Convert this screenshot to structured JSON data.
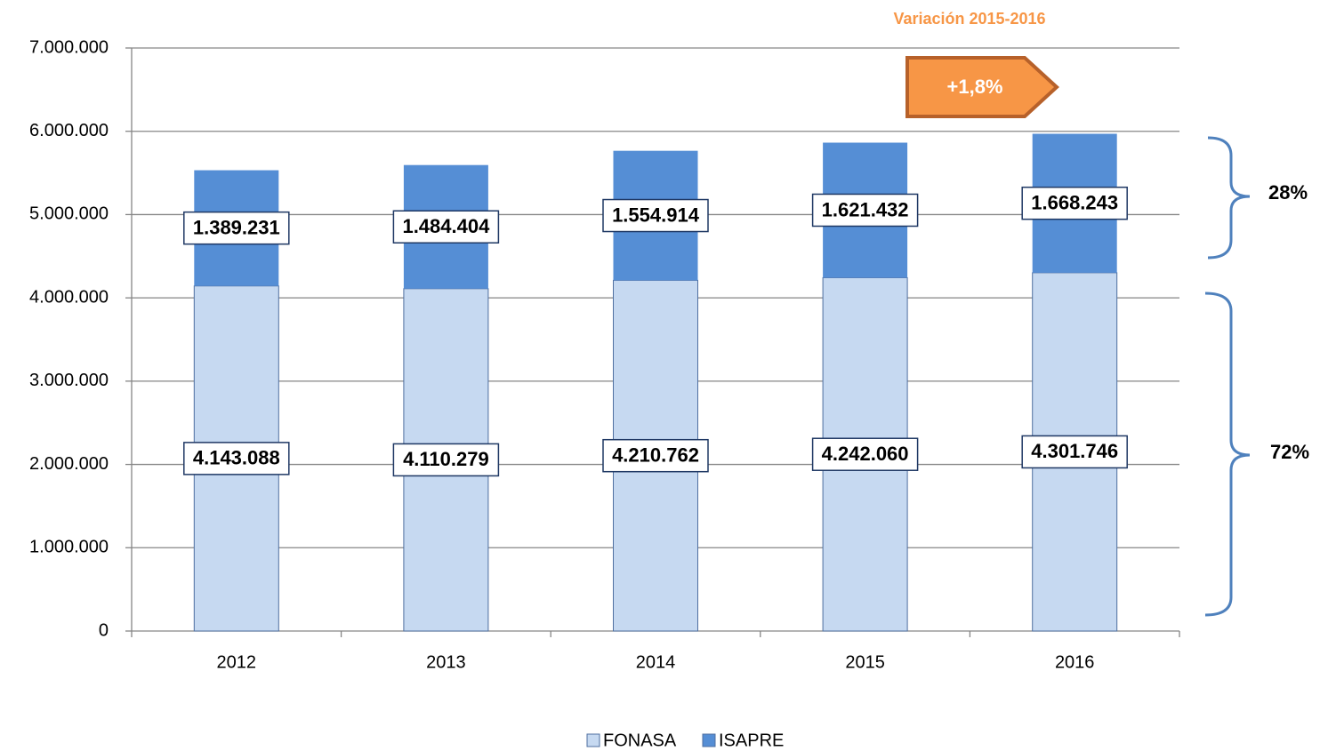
{
  "chart_data": {
    "type": "stacked_bar",
    "categories": [
      "2012",
      "2013",
      "2014",
      "2015",
      "2016"
    ],
    "series": [
      {
        "name": "FONASA",
        "color": "#c6d9f1",
        "values": [
          4143088,
          4110279,
          4210762,
          4242060,
          4301746
        ],
        "value_labels": [
          "4.143.088",
          "4.110.279",
          "4.210.762",
          "4.242.060",
          "4.301.746"
        ]
      },
      {
        "name": "ISAPRE",
        "color": "#558ed5",
        "values": [
          1389231,
          1484404,
          1554914,
          1621432,
          1668243
        ],
        "value_labels": [
          "1.389.231",
          "1.484.404",
          "1.554.914",
          "1.621.432",
          "1.668.243"
        ]
      }
    ],
    "ylim": [
      0,
      7000000
    ],
    "yticks": [
      0,
      {
        "value": 1000000,
        "label": "1.000.000"
      },
      {
        "value": 2000000,
        "label": "2.000.000"
      },
      {
        "value": 3000000,
        "label": "3.000.000"
      },
      {
        "value": 4000000,
        "label": "4.000.000"
      },
      {
        "value": 5000000,
        "label": "5.000.000"
      },
      {
        "value": 6000000,
        "label": "6.000.000"
      },
      {
        "value": 7000000,
        "label": "7.000.000"
      }
    ],
    "grid": true,
    "legend": "bottom",
    "annotations": [
      "Variación 2015-2016",
      "+1,8%",
      "28%",
      "72%"
    ]
  }
}
